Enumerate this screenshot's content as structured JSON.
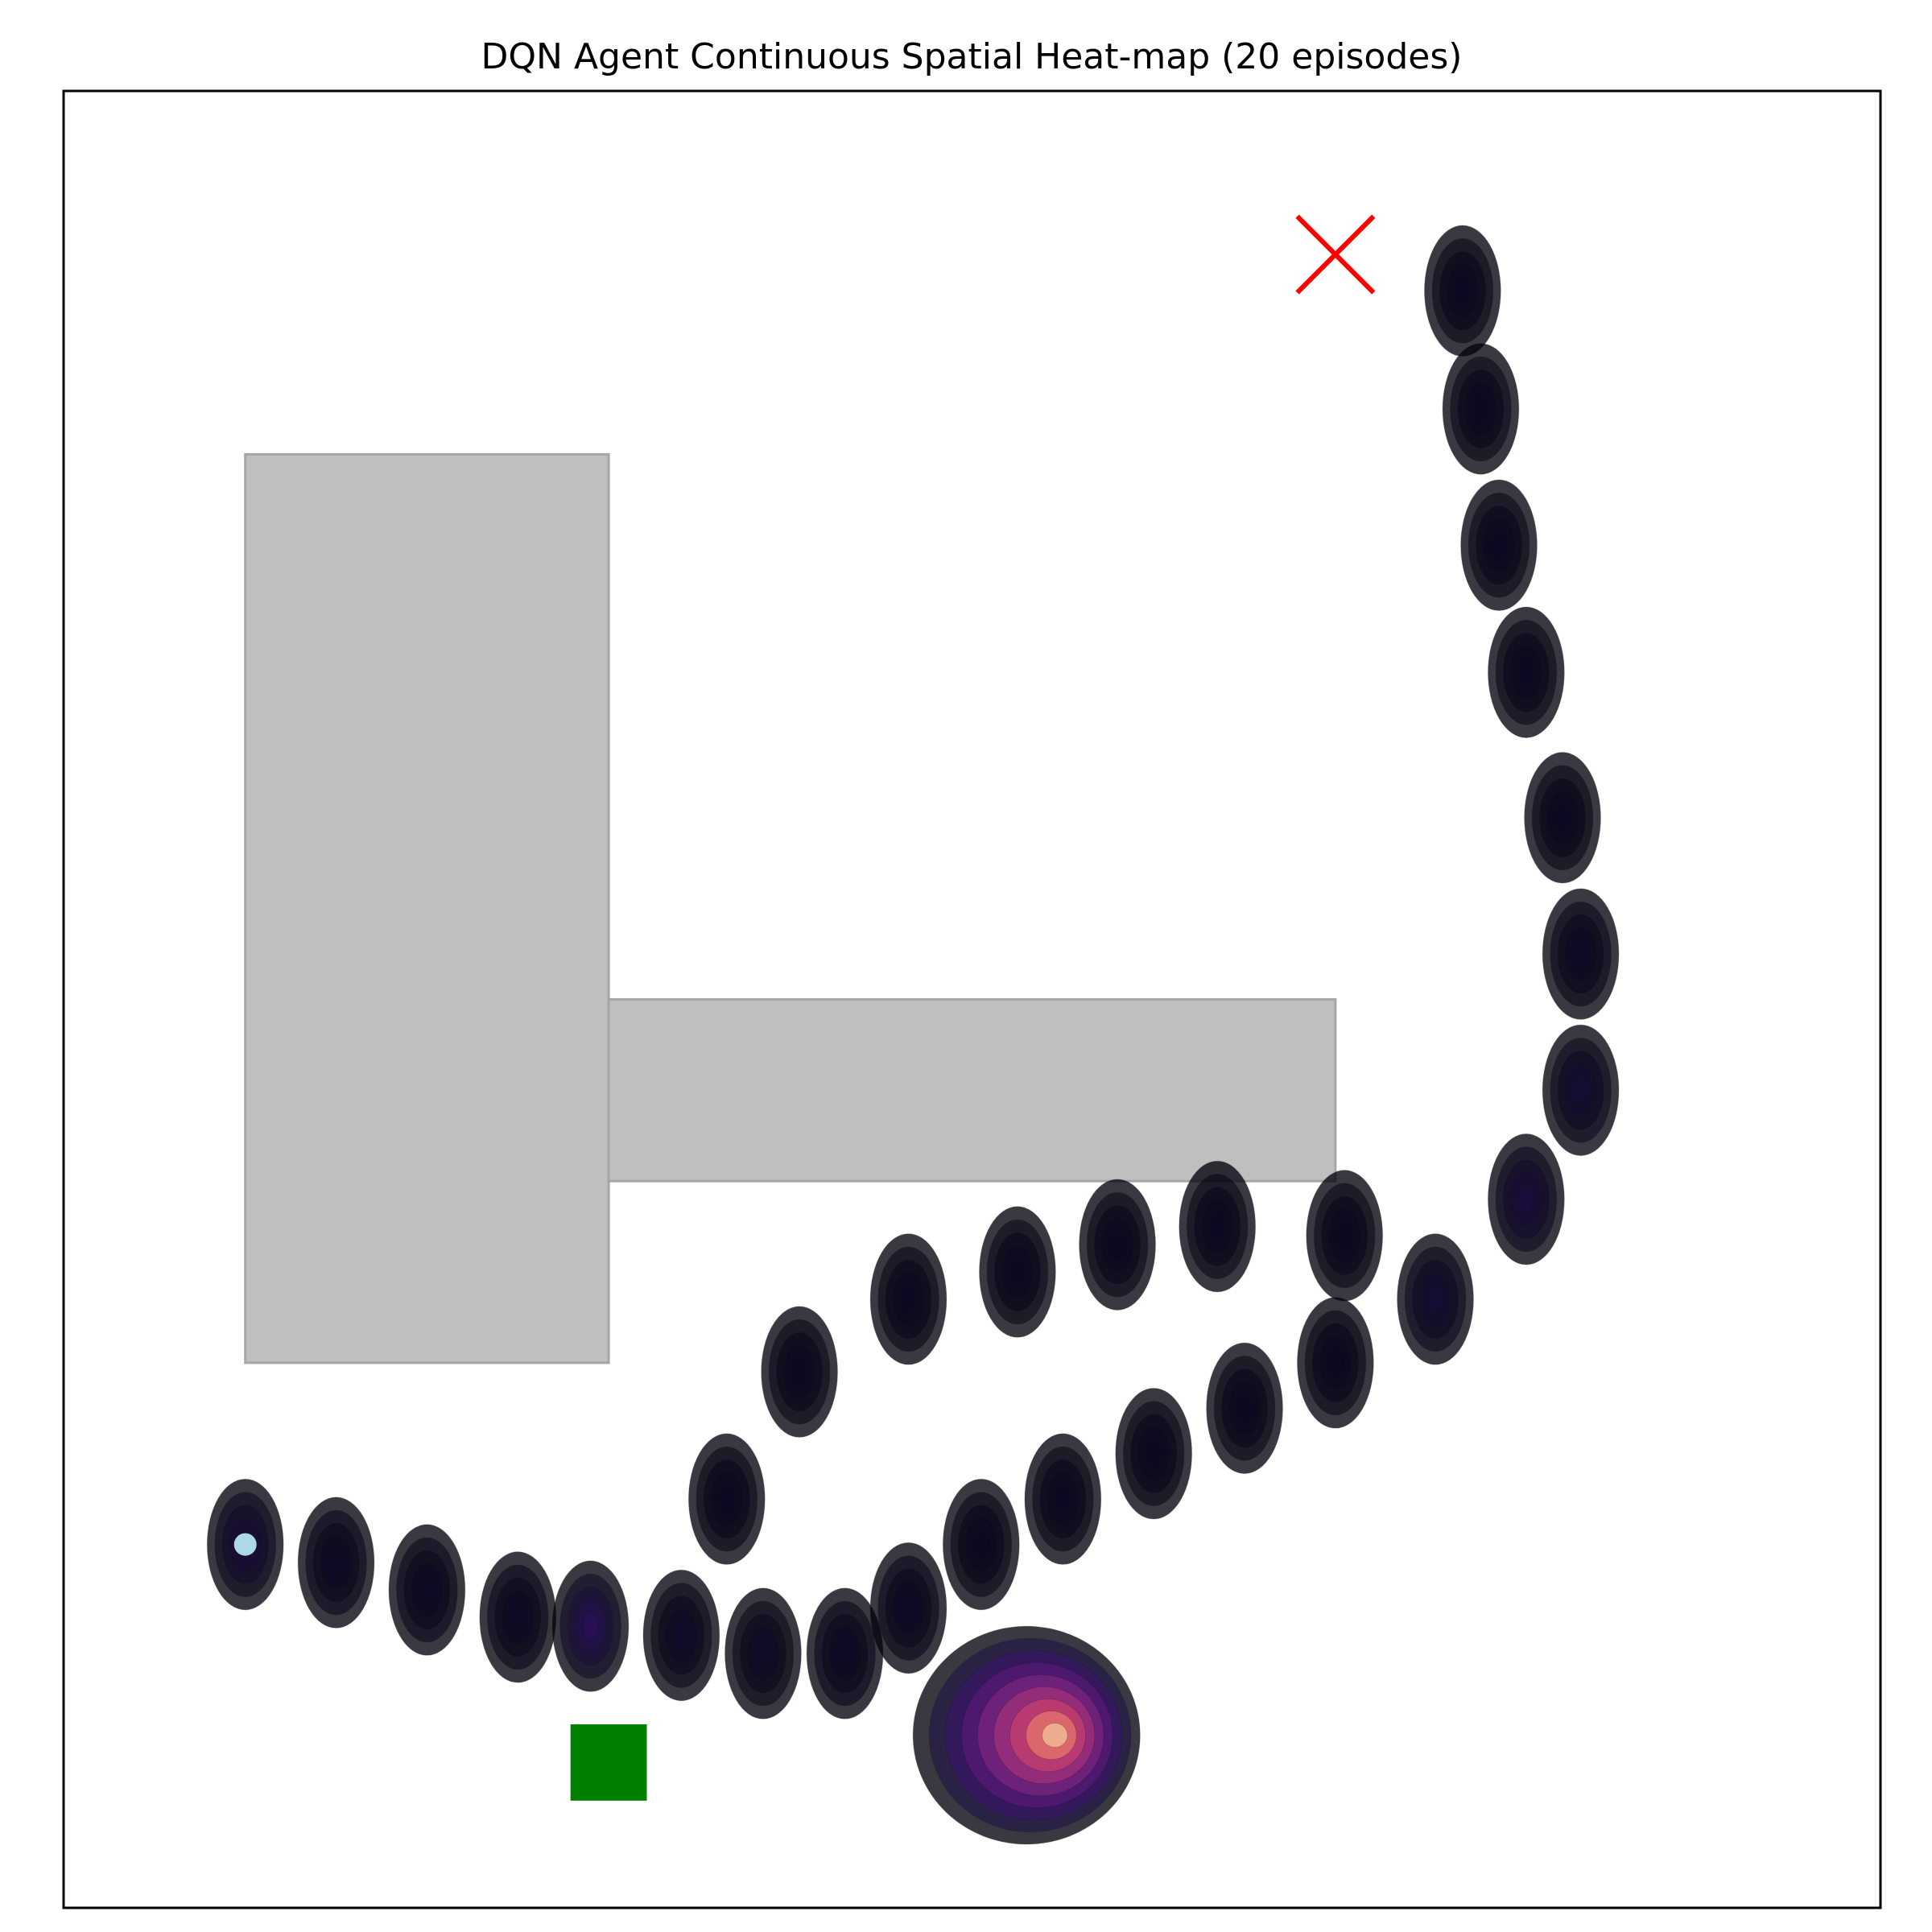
{
  "chart_data": {
    "type": "heatmap",
    "title": "DQN Agent Continuous Spatial Heat-map (20 episodes)",
    "xlabel": "",
    "ylabel": "",
    "xlim": [
      0,
      20
    ],
    "ylim": [
      0,
      20
    ],
    "axes_ticks_visible": false,
    "grid": false,
    "colormap": "magma",
    "colors": {
      "obstacle": "#bfbfbf",
      "obstacle_edge": "#a6a6a6",
      "start_marker": "#008000",
      "goal_marker": "#ff0000",
      "agent_marker": "#add8e6",
      "frame": "#000000"
    },
    "obstacles": [
      {
        "x": [
          2,
          6
        ],
        "y": [
          6,
          16
        ]
      },
      {
        "x": [
          6,
          14
        ],
        "y": [
          8,
          10
        ]
      }
    ],
    "start": {
      "x": 6,
      "y": 1.6,
      "marker": "square"
    },
    "goal": {
      "x": 14,
      "y": 18.2,
      "marker": "x"
    },
    "agent_position": {
      "x": 2,
      "y": 4
    },
    "density_peak": {
      "x": 10.6,
      "y": 1.9
    },
    "visited_path_points": [
      {
        "x": 2.0,
        "y": 4.0,
        "level": 0.12
      },
      {
        "x": 3.0,
        "y": 3.8,
        "level": 0.06
      },
      {
        "x": 4.0,
        "y": 3.5,
        "level": 0.06
      },
      {
        "x": 5.0,
        "y": 3.2,
        "level": 0.06
      },
      {
        "x": 5.8,
        "y": 3.1,
        "level": 0.2
      },
      {
        "x": 6.8,
        "y": 3.0,
        "level": 0.07
      },
      {
        "x": 7.7,
        "y": 2.8,
        "level": 0.07
      },
      {
        "x": 8.6,
        "y": 2.8,
        "level": 0.06
      },
      {
        "x": 9.3,
        "y": 3.3,
        "level": 0.06
      },
      {
        "x": 10.6,
        "y": 1.9,
        "level": 1.0
      },
      {
        "x": 10.1,
        "y": 4.0,
        "level": 0.05
      },
      {
        "x": 11.0,
        "y": 4.5,
        "level": 0.05
      },
      {
        "x": 12.0,
        "y": 5.0,
        "level": 0.05
      },
      {
        "x": 13.0,
        "y": 5.5,
        "level": 0.05
      },
      {
        "x": 14.0,
        "y": 6.0,
        "level": 0.05
      },
      {
        "x": 15.1,
        "y": 6.7,
        "level": 0.1
      },
      {
        "x": 16.1,
        "y": 7.8,
        "level": 0.12
      },
      {
        "x": 16.7,
        "y": 9.0,
        "level": 0.1
      },
      {
        "x": 16.7,
        "y": 10.5,
        "level": 0.06
      },
      {
        "x": 16.5,
        "y": 12.0,
        "level": 0.05
      },
      {
        "x": 16.1,
        "y": 13.6,
        "level": 0.05
      },
      {
        "x": 15.8,
        "y": 15.0,
        "level": 0.05
      },
      {
        "x": 15.6,
        "y": 16.5,
        "level": 0.05
      },
      {
        "x": 15.4,
        "y": 17.8,
        "level": 0.05
      },
      {
        "x": 14.1,
        "y": 7.4,
        "level": 0.05
      },
      {
        "x": 12.7,
        "y": 7.5,
        "level": 0.05
      },
      {
        "x": 11.6,
        "y": 7.3,
        "level": 0.05
      },
      {
        "x": 10.5,
        "y": 7.0,
        "level": 0.05
      },
      {
        "x": 9.3,
        "y": 6.7,
        "level": 0.05
      },
      {
        "x": 8.1,
        "y": 5.9,
        "level": 0.05
      },
      {
        "x": 7.3,
        "y": 4.5,
        "level": 0.05
      }
    ]
  }
}
